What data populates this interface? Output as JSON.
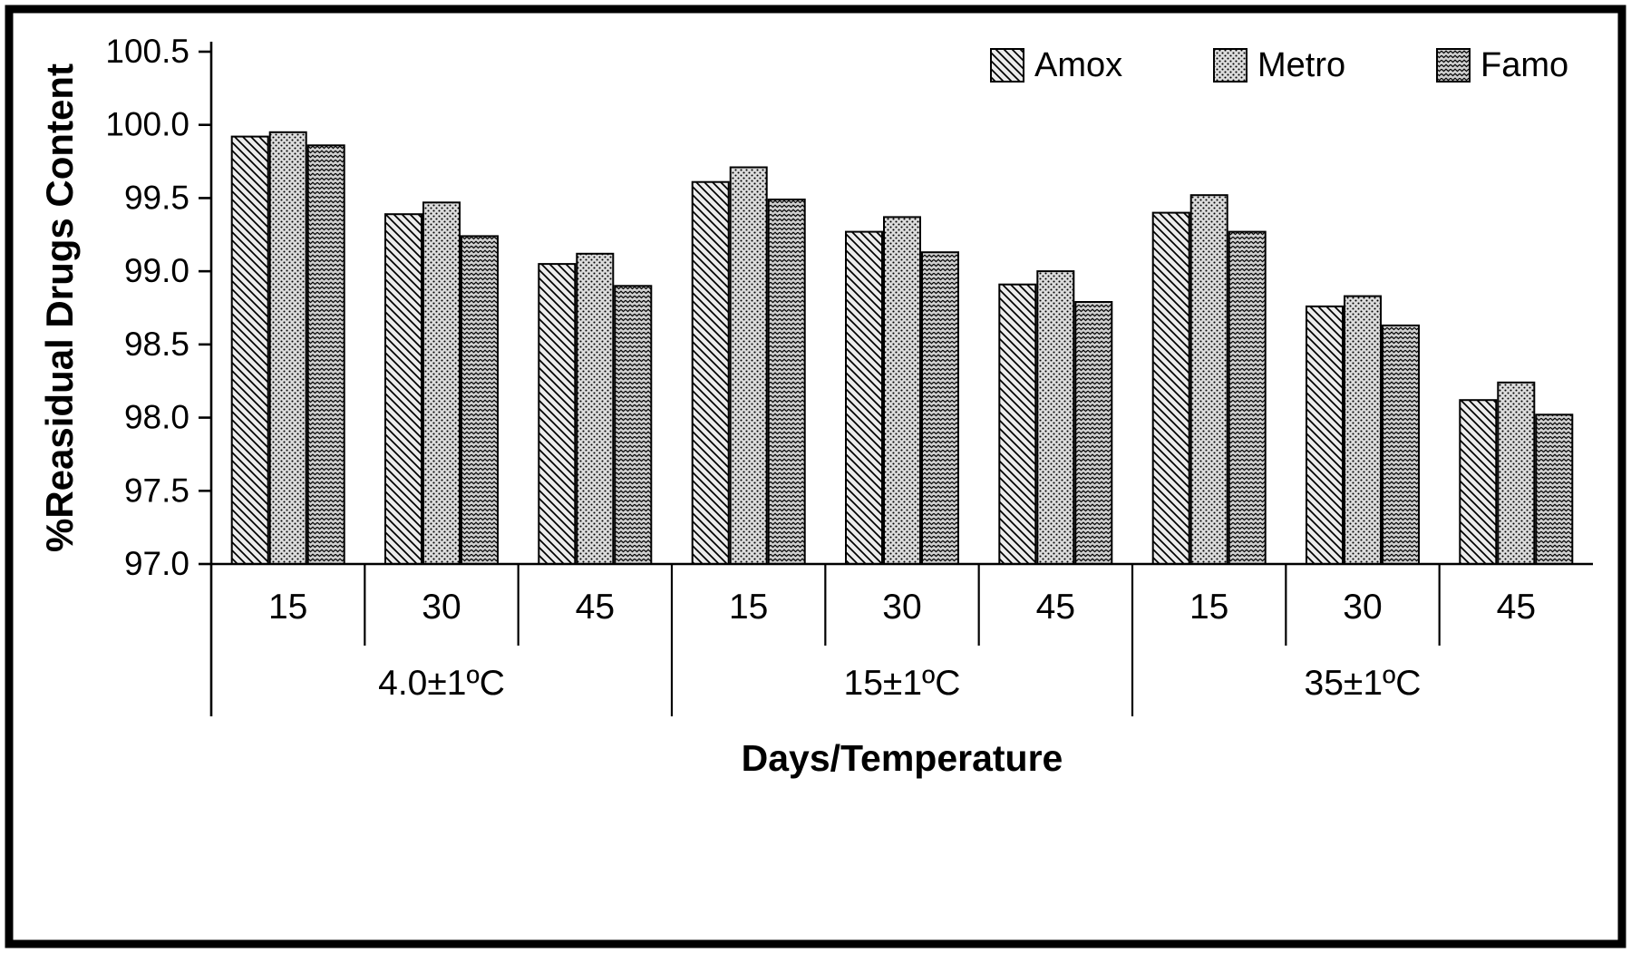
{
  "figure": {
    "background": "#ffffff",
    "frame_color": "#000000"
  },
  "chart_data": {
    "type": "bar",
    "title": "",
    "xlabel": "Days/Temperature",
    "ylabel": "%Reasidual Drugs Content",
    "ylim": [
      97.0,
      100.5
    ],
    "ytick_step": 0.5,
    "ytick_labels": [
      "97.0",
      "97.5",
      "98.0",
      "98.5",
      "99.0",
      "99.5",
      "100.0",
      "100.5"
    ],
    "grid": false,
    "legend_position": "top-right",
    "groups": [
      {
        "label": "4.0±1ºC",
        "days": [
          "15",
          "30",
          "45"
        ]
      },
      {
        "label": "15±1ºC",
        "days": [
          "15",
          "30",
          "45"
        ]
      },
      {
        "label": "35±1ºC",
        "days": [
          "15",
          "30",
          "45"
        ]
      }
    ],
    "series": [
      {
        "name": "Amox",
        "pattern": "diagonal-hatch",
        "fill": "#ececec",
        "values": [
          99.92,
          99.39,
          99.05,
          99.61,
          99.27,
          98.91,
          99.4,
          98.76,
          98.12
        ]
      },
      {
        "name": "Metro",
        "pattern": "dots",
        "fill": "#dcdcdc",
        "values": [
          99.95,
          99.47,
          99.12,
          99.71,
          99.37,
          99.0,
          99.52,
          98.83,
          98.24
        ]
      },
      {
        "name": "Famo",
        "pattern": "zigzag",
        "fill": "#d0d0d0",
        "values": [
          99.86,
          99.24,
          98.9,
          99.49,
          99.13,
          98.79,
          99.27,
          98.63,
          98.02
        ]
      }
    ],
    "bar_stroke": "#000000",
    "axis_color": "#000000",
    "text_color": "#000000"
  }
}
